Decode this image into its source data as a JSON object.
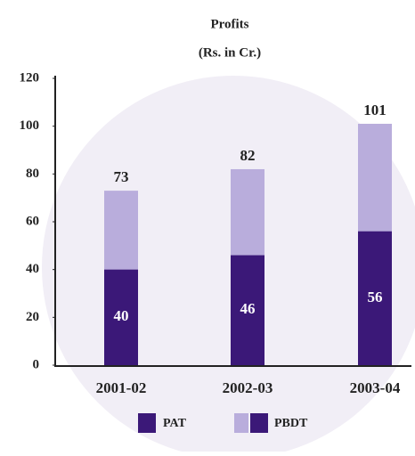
{
  "chart_data": {
    "type": "overlap-bar",
    "title": "Profits",
    "subtitle": "(Rs. in Cr.)",
    "categories": [
      "2001-02",
      "2002-03",
      "2003-04"
    ],
    "series": [
      {
        "name": "PBDT",
        "color": "#b9addc",
        "values": [
          73,
          82,
          101
        ]
      },
      {
        "name": "PAT",
        "color": "#3b1878",
        "values": [
          40,
          46,
          56
        ]
      }
    ],
    "ylim": [
      0,
      120
    ],
    "yticks": [
      0,
      20,
      40,
      60,
      80,
      100,
      120
    ]
  }
}
